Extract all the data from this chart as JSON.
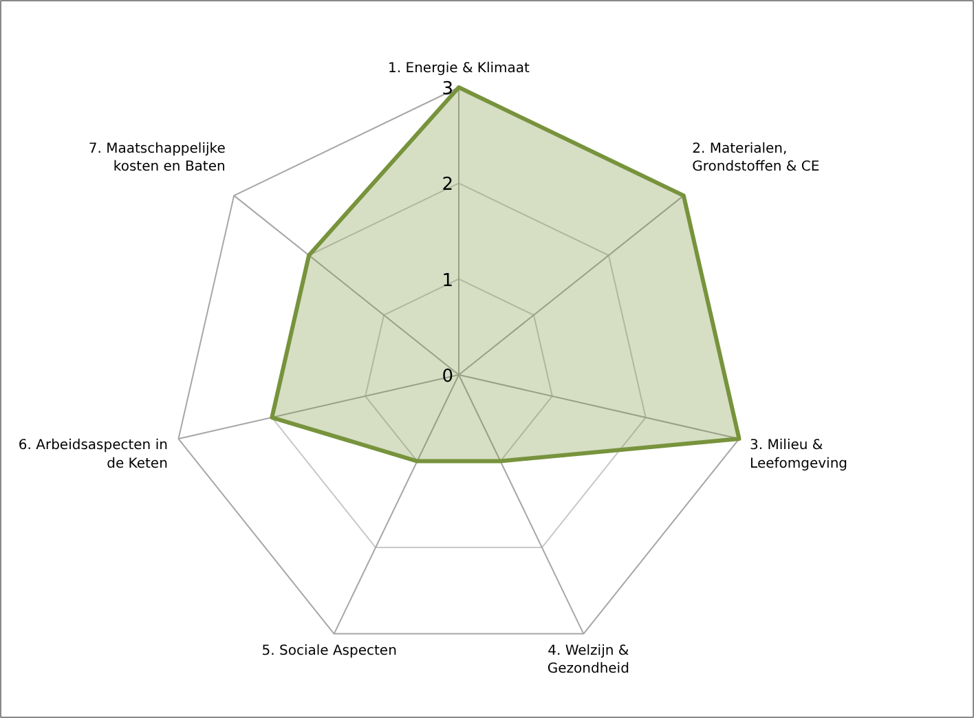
{
  "chart_data": {
    "type": "radar",
    "categories": [
      "1. Energie & Klimaat",
      "2. Materialen,\nGrondstoffen & CE",
      "3. Milieu &\nLeefomgeving",
      "4. Welzijn &\nGezondheid",
      "5. Sociale Aspecten",
      "6. Arbeidsaspecten in\nde Keten",
      "7. Maatschappelijke\nkosten en Baten"
    ],
    "series": [
      {
        "color": "#77933c",
        "values": [
          3,
          3,
          3,
          1,
          1,
          2,
          2
        ]
      }
    ],
    "ylim": [
      0,
      3
    ],
    "yticks": [
      0,
      1,
      2,
      3
    ]
  }
}
